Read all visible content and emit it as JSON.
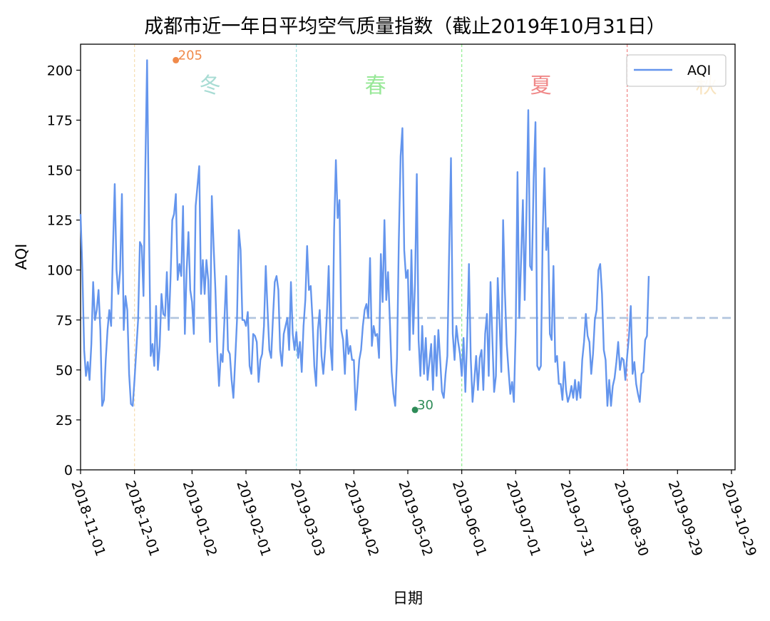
{
  "chart_data": {
    "type": "line",
    "title": "成都市近一年日平均空气质量指数（截止2019年10月31日）",
    "xlabel": "日期",
    "ylabel": "AQI",
    "x_start": "2018-11-01",
    "x_end": "2019-10-31",
    "ylim": [
      0,
      213
    ],
    "y_ticks": [
      0,
      25,
      50,
      75,
      100,
      125,
      150,
      175,
      200
    ],
    "x_ticks": [
      "2018-11-01",
      "2018-12-01",
      "2019-01-02",
      "2019-02-01",
      "2019-03-03",
      "2019-04-02",
      "2019-05-02",
      "2019-06-01",
      "2019-07-01",
      "2019-07-31",
      "2019-08-30",
      "2019-09-29",
      "2019-10-29"
    ],
    "legend": {
      "entries": [
        "AQI"
      ],
      "position": "top-right"
    },
    "mean_line": {
      "value": 76,
      "color": "#b0c4de",
      "style": "dashed"
    },
    "season_boundaries": [
      {
        "date": "2018-12-01",
        "color": "#f5deb3"
      },
      {
        "date": "2019-03-01",
        "color": "#a0e0e0"
      },
      {
        "date": "2019-06-01",
        "color": "#90ee90"
      },
      {
        "date": "2019-09-01",
        "color": "#f08080"
      }
    ],
    "season_labels": [
      {
        "text": "冬",
        "date": "2019-01-12",
        "color": "#a8dcd4"
      },
      {
        "text": "春",
        "date": "2019-04-14",
        "color": "#98e898"
      },
      {
        "text": "夏",
        "date": "2019-07-15",
        "color": "#f08888"
      },
      {
        "text": "秋",
        "date": "2019-10-15",
        "color": "#f8e4c0"
      }
    ],
    "annotations": [
      {
        "text": "205",
        "date": "2018-12-24",
        "value": 205,
        "color": "#f08a4b"
      },
      {
        "text": "30",
        "date": "2019-05-06",
        "value": 30,
        "color": "#2e8b57"
      }
    ],
    "series": [
      {
        "name": "AQI",
        "color": "#6495ed",
        "start_date": "2018-11-01",
        "values": [
          128,
          100,
          60,
          47,
          54,
          45,
          63,
          94,
          75,
          80,
          90,
          70,
          32,
          35,
          55,
          70,
          80,
          72,
          110,
          143,
          100,
          88,
          100,
          138,
          70,
          87,
          80,
          48,
          33,
          32,
          45,
          60,
          75,
          114,
          112,
          87,
          150,
          205,
          125,
          57,
          63,
          52,
          82,
          50,
          62,
          88,
          78,
          77,
          99,
          70,
          95,
          125,
          128,
          138,
          95,
          103,
          97,
          132,
          68,
          100,
          119,
          90,
          84,
          68,
          132,
          142,
          152,
          88,
          105,
          88,
          105,
          95,
          64,
          137,
          112,
          90,
          60,
          42,
          58,
          54,
          75,
          97,
          60,
          58,
          45,
          36,
          55,
          75,
          120,
          110,
          75,
          75,
          72,
          79,
          52,
          48,
          68,
          67,
          64,
          44,
          55,
          58,
          72,
          102,
          80,
          60,
          56,
          76,
          94,
          97,
          90,
          60,
          52,
          68,
          72,
          76,
          60,
          94,
          68,
          60,
          69,
          56,
          64,
          49,
          72,
          85,
          112,
          90,
          92,
          75,
          52,
          42,
          70,
          80,
          57,
          48,
          60,
          78,
          102,
          62,
          50,
          120,
          155,
          126,
          135,
          70,
          65,
          48,
          70,
          58,
          62,
          55,
          55,
          30,
          42,
          55,
          60,
          72,
          80,
          83,
          76,
          106,
          62,
          72,
          67,
          68,
          56,
          108,
          84,
          125,
          85,
          99,
          75,
          49,
          38,
          32,
          56,
          115,
          157,
          171,
          110,
          96,
          100,
          60,
          110,
          68,
          93,
          148,
          65,
          47,
          72,
          48,
          66,
          45,
          54,
          63,
          40,
          67,
          47,
          70,
          55,
          39,
          36,
          48,
          57,
          110,
          156,
          68,
          55,
          72,
          64,
          58,
          47,
          66,
          39,
          66,
          103,
          56,
          34,
          45,
          57,
          40,
          56,
          60,
          40,
          68,
          78,
          47,
          94,
          66,
          39,
          47,
          96,
          75,
          49,
          125,
          89,
          63,
          50,
          38,
          44,
          34,
          70,
          149,
          76,
          105,
          135,
          85,
          130,
          180,
          102,
          100,
          146,
          174,
          52,
          50,
          52,
          117,
          151,
          110,
          121,
          68,
          65,
          102,
          54,
          57,
          43,
          43,
          35,
          54,
          40,
          34,
          37,
          42,
          36,
          45,
          35,
          44,
          36,
          55,
          64,
          78,
          67,
          64,
          48,
          58,
          75,
          80,
          100,
          103,
          88,
          60,
          55,
          32,
          45,
          32,
          42,
          46,
          54,
          64,
          50,
          56,
          55,
          45,
          57,
          67,
          82,
          48,
          54,
          43,
          38,
          34,
          48,
          49,
          65,
          67,
          97
        ]
      }
    ]
  }
}
